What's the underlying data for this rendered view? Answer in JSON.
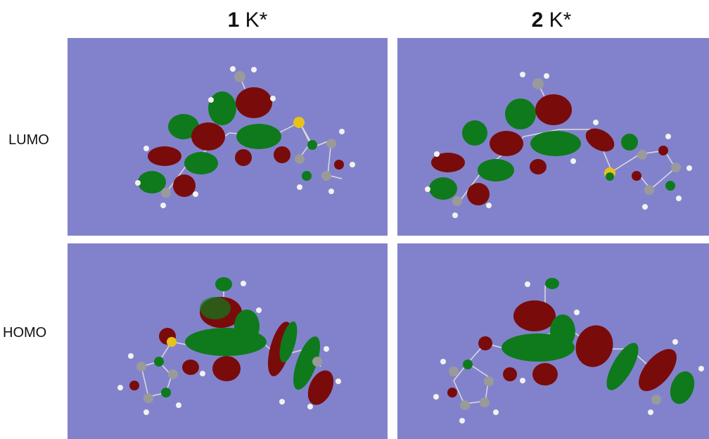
{
  "columns": [
    {
      "number": "1",
      "suffix": "K*"
    },
    {
      "number": "2",
      "suffix": "K*"
    }
  ],
  "rows": [
    "LUMO",
    "HOMO"
  ],
  "colors": {
    "panel_background": "#8282cc",
    "lobe_positive": "#0e7a1c",
    "lobe_negative": "#7a0b0b",
    "atom_carbon": "#9a9a9a",
    "atom_hydrogen": "#f2f2f2",
    "atom_sulfur": "#e8c21a"
  }
}
